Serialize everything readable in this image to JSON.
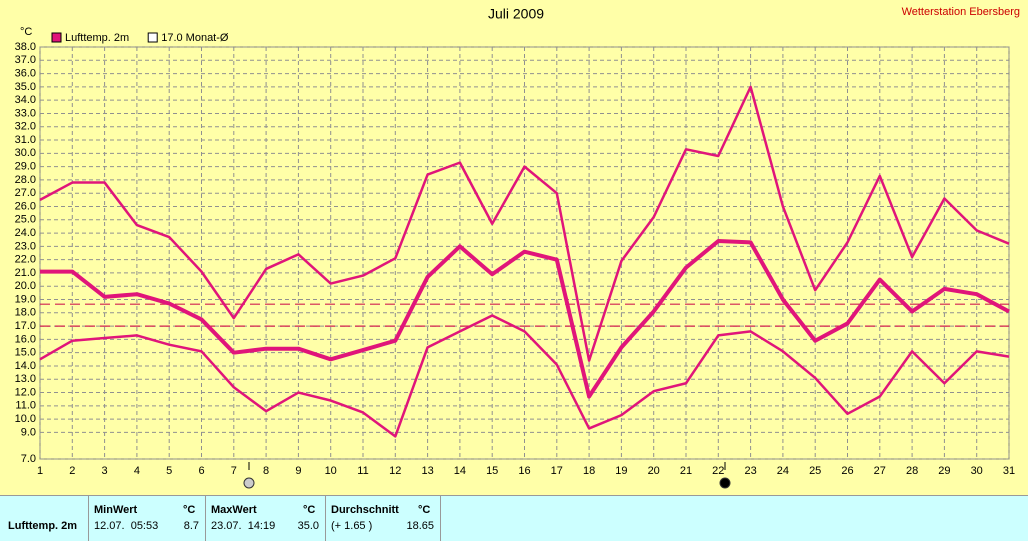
{
  "chart_data": {
    "type": "line",
    "title": "Juli 2009",
    "station": "Wetterstation Ebersberg",
    "y_unit": "°C",
    "x": [
      1,
      2,
      3,
      4,
      5,
      6,
      7,
      8,
      9,
      10,
      11,
      12,
      13,
      14,
      15,
      16,
      17,
      18,
      19,
      20,
      21,
      22,
      23,
      24,
      25,
      26,
      27,
      28,
      29,
      30,
      31
    ],
    "xlim": [
      1,
      31
    ],
    "xticks": [
      1,
      2,
      3,
      4,
      5,
      6,
      7,
      8,
      9,
      10,
      11,
      12,
      13,
      14,
      15,
      16,
      17,
      18,
      19,
      20,
      21,
      22,
      23,
      24,
      25,
      26,
      27,
      28,
      29,
      30,
      31
    ],
    "ylim": [
      7,
      38
    ],
    "yticks": [
      {
        "value": 7,
        "label": "7.0"
      },
      {
        "value": 9,
        "label": "9.0"
      },
      {
        "value": 10,
        "label": "10.0"
      },
      {
        "value": 11,
        "label": "11.0"
      },
      {
        "value": 12,
        "label": "12.0"
      },
      {
        "value": 13,
        "label": "13.0"
      },
      {
        "value": 14,
        "label": "14.0"
      },
      {
        "value": 15,
        "label": "15.0"
      },
      {
        "value": 16,
        "label": "16.0"
      },
      {
        "value": 17,
        "label": "17.0"
      },
      {
        "value": 18,
        "label": "18.0"
      },
      {
        "value": 19,
        "label": "19.0"
      },
      {
        "value": 20,
        "label": "20.0"
      },
      {
        "value": 21,
        "label": "21.0"
      },
      {
        "value": 22,
        "label": "22.0"
      },
      {
        "value": 23,
        "label": "23.0"
      },
      {
        "value": 24,
        "label": "24.0"
      },
      {
        "value": 25,
        "label": "25.0"
      },
      {
        "value": 26,
        "label": "26.0"
      },
      {
        "value": 27,
        "label": "27.0"
      },
      {
        "value": 28,
        "label": "28.0"
      },
      {
        "value": 29,
        "label": "29.0"
      },
      {
        "value": 30,
        "label": "30.0"
      },
      {
        "value": 31,
        "label": "31.0"
      },
      {
        "value": 32,
        "label": "32.0"
      },
      {
        "value": 33,
        "label": "33.0"
      },
      {
        "value": 34,
        "label": "34.0"
      },
      {
        "value": 35,
        "label": "35.0"
      },
      {
        "value": 36,
        "label": "36.0"
      },
      {
        "value": 37,
        "label": "37.0"
      },
      {
        "value": 38,
        "label": "38.0"
      }
    ],
    "grid": true,
    "series": [
      {
        "color": "#e0157a",
        "width": 2.5,
        "values": [
          26.5,
          27.8,
          27.8,
          24.6,
          23.7,
          21.1,
          17.6,
          21.3,
          22.4,
          20.2,
          20.8,
          22.1,
          28.4,
          29.3,
          24.7,
          29.0,
          27.0,
          14.4,
          21.9,
          25.2,
          30.3,
          29.8,
          35.0,
          26.0,
          19.7,
          23.3,
          28.3,
          22.2,
          26.6,
          24.2,
          23.2
        ]
      },
      {
        "name": "Lufttemp. 2m",
        "color": "#e0157a",
        "width": 4,
        "values": [
          21.1,
          21.1,
          19.2,
          19.4,
          18.7,
          17.5,
          15.0,
          15.3,
          15.3,
          14.5,
          15.2,
          15.9,
          20.7,
          23.0,
          20.9,
          22.6,
          22.0,
          11.7,
          15.4,
          18.1,
          21.4,
          23.4,
          23.3,
          19.0,
          15.9,
          17.2,
          20.5,
          18.1,
          19.8,
          19.4,
          18.1
        ]
      },
      {
        "color": "#e0157a",
        "width": 2.5,
        "values": [
          14.5,
          15.9,
          16.1,
          16.3,
          15.6,
          15.1,
          12.4,
          10.6,
          12.0,
          11.4,
          10.5,
          8.7,
          15.4,
          16.6,
          17.8,
          16.6,
          14.1,
          9.3,
          10.3,
          12.1,
          12.7,
          16.3,
          16.6,
          15.1,
          13.1,
          10.4,
          11.7,
          15.1,
          12.7,
          15.1,
          14.7
        ]
      }
    ],
    "reference_lines": [
      {
        "value": 18.65,
        "color": "#d02050"
      },
      {
        "value": 17.0,
        "label": "17.0 Monat-Ø",
        "color": "#d02050"
      }
    ]
  },
  "stats_table": {
    "row_label": "Lufttemp. 2m",
    "columns": [
      {
        "header": "MinWert",
        "unit": "°C",
        "when": "12.07.  05:53",
        "value": "8.7"
      },
      {
        "header": "MaxWert",
        "unit": "°C",
        "when": "23.07.  14:19",
        "value": "35.0"
      },
      {
        "header": "Durchschnitt",
        "unit": "°C",
        "when": "(+ 1.65 )",
        "value": "18.65"
      }
    ]
  }
}
